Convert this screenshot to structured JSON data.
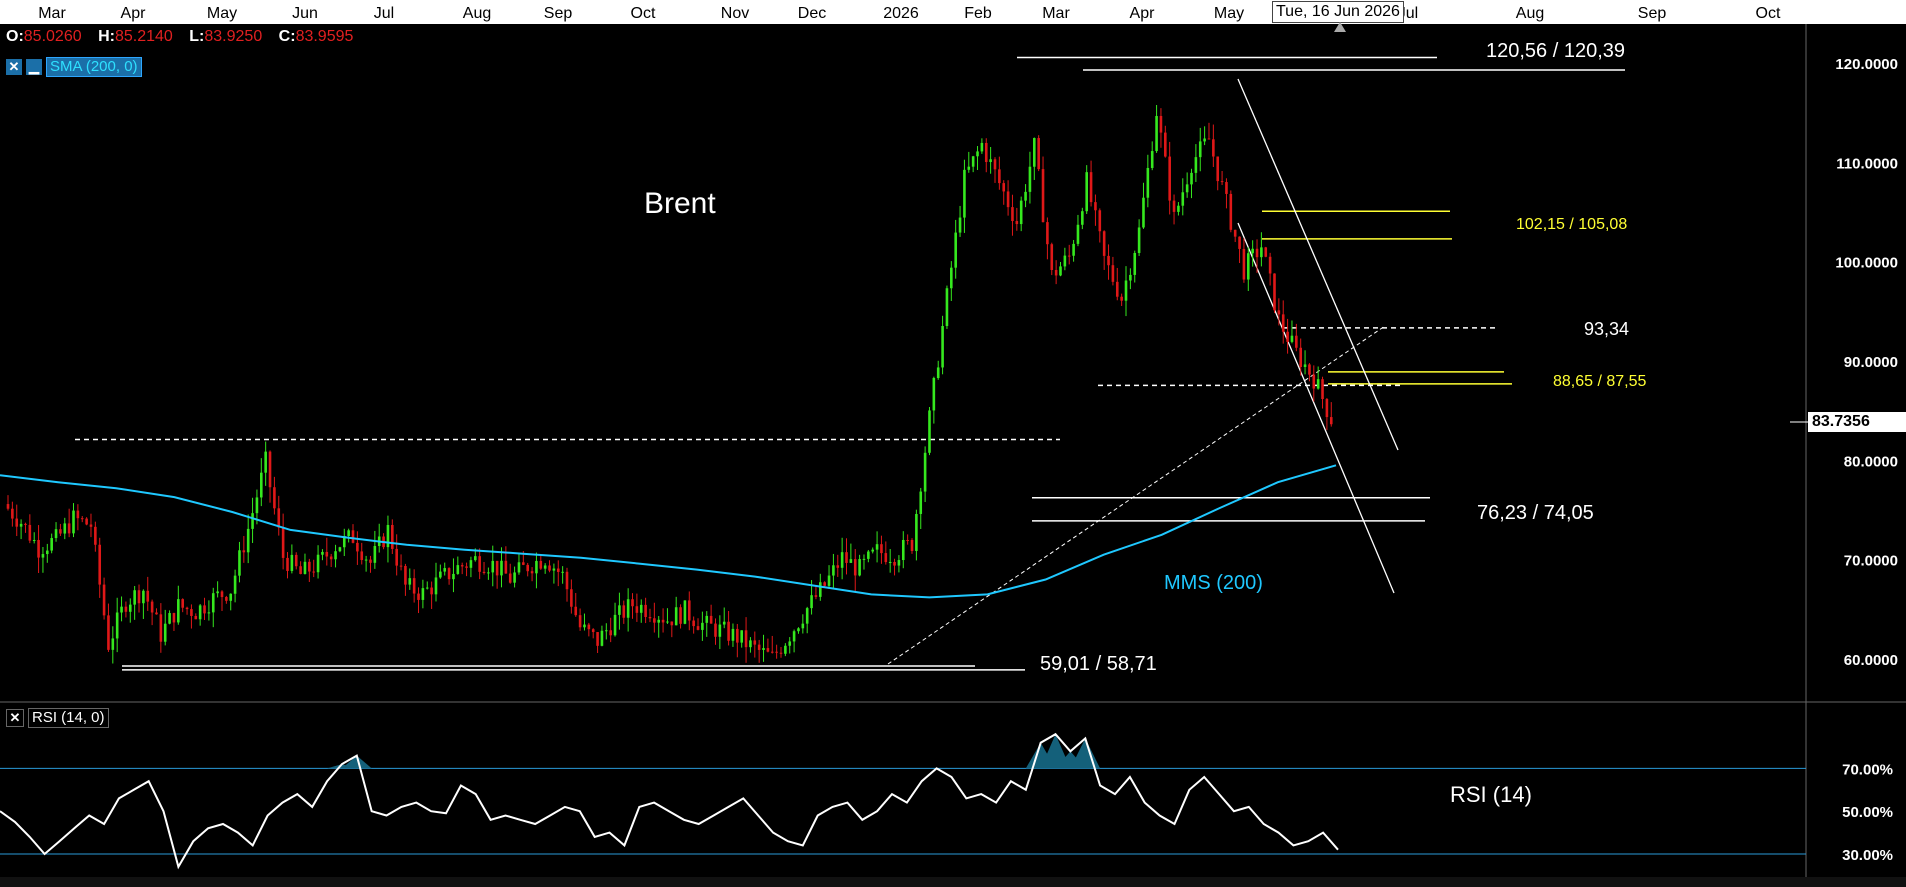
{
  "ohlc": {
    "o_label": "O:",
    "o": "85.0260",
    "h_label": "H:",
    "h": "85.2140",
    "l_label": "L:",
    "l": "83.9250",
    "c_label": "C:",
    "c": "83.9595"
  },
  "indicators": {
    "sma": {
      "close_icon": "close-icon",
      "minimize_icon": "minimize-icon",
      "label": "SMA (200, 0)",
      "color": "#1fc8ff"
    },
    "rsi": {
      "close_icon": "close-icon",
      "label": "RSI (14, 0)"
    }
  },
  "crosshair_date": "Tue, 16 Jun 2026",
  "last_price": "83.7356",
  "colors": {
    "up": "#35e81e",
    "down": "#e01818",
    "sma": "#1fc8ff",
    "levels": "#ffffff",
    "yellow_levels": "#ffff33",
    "rsi": "#ffffff",
    "rsi_bands": "#2a9ad8",
    "rsi_fill": "#14607a"
  },
  "chart_data": [
    {
      "type": "candlestick",
      "title": "Brent",
      "x_ticks": [
        "Mar",
        "Apr",
        "May",
        "Jun",
        "Jul",
        "Aug",
        "Sep",
        "Oct",
        "Nov",
        "Dec",
        "2026",
        "Feb",
        "Mar",
        "Apr",
        "May",
        "Jun",
        "Jul",
        "Aug",
        "Sep",
        "Oct"
      ],
      "y_ticks": [
        "60.0000",
        "70.0000",
        "80.0000",
        "90.0000",
        "100.0000",
        "110.0000",
        "120.0000"
      ],
      "ylim": [
        55,
        123
      ],
      "series": [
        {
          "name": "MMS (200)",
          "values": [
            78.5,
            77.8,
            77.2,
            76.3,
            74.8,
            73.0,
            72.2,
            71.5,
            71.0,
            70.6,
            70.2,
            69.6,
            69.0,
            68.3,
            67.4,
            66.5,
            66.2,
            66.5,
            68.0,
            70.5,
            72.5,
            75.2,
            77.8,
            79.5
          ]
        }
      ],
      "sma_label": "MMS (200)",
      "candles_close": [
        75.6,
        73.8,
        71.2,
        72.0,
        74.1,
        73.5,
        61.5,
        65.8,
        67.0,
        62.5,
        65.3,
        64.8,
        66.1,
        67.0,
        73.1,
        79.8,
        70.3,
        68.5,
        69.6,
        71.4,
        72.3,
        69.7,
        73.0,
        67.3,
        66.6,
        68.0,
        69.2,
        70.0,
        69.5,
        68.1,
        69.4,
        70.2,
        68.4,
        63.2,
        61.8,
        64.0,
        65.5,
        65.0,
        64.0,
        64.8,
        63.5,
        62.9,
        62.2,
        61.0,
        60.1,
        62.5,
        65.1,
        67.4,
        70.2,
        69.0,
        70.8,
        70.5,
        71.7,
        84.2,
        96.4,
        108.3,
        111.8,
        107.9,
        104.0,
        111.5,
        98.6,
        100.5,
        108.0,
        100.2,
        96.4,
        103.1,
        115.2,
        104.3,
        110.0,
        112.3,
        105.8,
        99.2,
        101.6,
        94.1,
        90.8,
        88.3,
        84.2
      ],
      "levels": [
        {
          "label": "120,56 / 120,39",
          "values": [
            120.56,
            120.39
          ]
        },
        {
          "label": "102,15 / 105,08",
          "values": [
            102.15,
            105.08
          ]
        },
        {
          "label": "93,34",
          "values": [
            93.34
          ]
        },
        {
          "label": "88,65 / 87,55",
          "values": [
            88.65,
            87.55
          ]
        },
        {
          "label": "76,23 / 74,05",
          "values": [
            76.23,
            74.05
          ]
        },
        {
          "label": "59,01 / 58,71",
          "values": [
            59.01,
            58.71
          ]
        }
      ]
    },
    {
      "type": "line",
      "title": "RSI (14)",
      "y_ticks": [
        "70.00%",
        "50.00%",
        "30.00%"
      ],
      "ylim": [
        25,
        90
      ],
      "bands": [
        70,
        30
      ],
      "values": [
        50,
        45,
        38,
        30,
        36,
        42,
        48,
        44,
        56,
        60,
        64,
        50,
        24,
        36,
        42,
        44,
        40,
        34,
        48,
        54,
        58,
        52,
        64,
        72,
        76,
        50,
        48,
        52,
        54,
        50,
        49,
        62,
        58,
        46,
        48,
        46,
        44,
        48,
        52,
        50,
        38,
        40,
        34,
        52,
        54,
        50,
        46,
        44,
        48,
        52,
        56,
        48,
        40,
        36,
        34,
        48,
        52,
        54,
        46,
        50,
        58,
        54,
        64,
        70,
        66,
        56,
        58,
        54,
        64,
        60,
        82,
        86,
        78,
        84,
        62,
        58,
        66,
        54,
        48,
        44,
        60,
        66,
        58,
        50,
        52,
        44,
        40,
        34,
        36,
        40,
        32
      ]
    }
  ]
}
